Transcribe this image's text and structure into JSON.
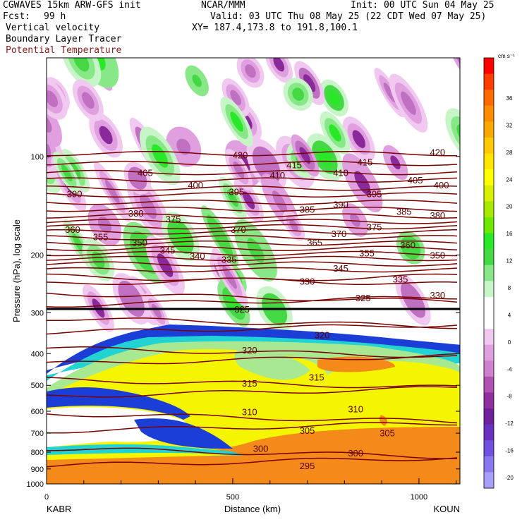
{
  "header": {
    "model": "CGWAVES 15km ARW-GFS init",
    "org": "NCAR/MMM",
    "init": "Init: 00 UTC Sun 04 May 25",
    "fcst_label": "Fcst:",
    "fcst_value": "99 h",
    "valid": "Valid: 03 UTC Thu 08 May 25 (22 CDT Wed 07 May 25)",
    "field1": "Vertical velocity",
    "field2": "Boundary Layer Tracer",
    "field3": "Potential Temperature",
    "xy": "XY= 187.4,173.8 to 191.8,100.1"
  },
  "colors": {
    "theta_contour": "#7a0000",
    "tracer_blue": "#1b3fd6",
    "tracer_cyan": "#22d3d3",
    "tracer_lightgreen": "#a8e890",
    "tracer_yellow": "#f5f500",
    "tracer_orange": "#f38a1a"
  },
  "chart_data": {
    "type": "heatmap",
    "ylabel": "Pressure (hPa), log scale",
    "xlabel": "Distance (km)",
    "y_scale": "log",
    "ylim": [
      1000,
      50
    ],
    "xlim": [
      0,
      1110
    ],
    "y_ticks": [
      100,
      200,
      300,
      400,
      500,
      600,
      700,
      800,
      900,
      1000
    ],
    "x_ticks": [
      0,
      500,
      1000
    ],
    "x_end_labels": [
      "KABR",
      "KOUN"
    ],
    "colorbar": {
      "unit": "cm s⁻¹",
      "labels": [
        36,
        32,
        28,
        24,
        20,
        16,
        12,
        8,
        4,
        0,
        -4,
        -8,
        -12,
        -16,
        -20
      ],
      "colors": [
        "#ff0000",
        "#ff3c00",
        "#ff6a00",
        "#ff8c00",
        "#f8a800",
        "#ffc800",
        "#ffe400",
        "#ffff00",
        "#d8f000",
        "#a8e800",
        "#6ee800",
        "#28e828",
        "#44d844",
        "#88e888",
        "#c8f5c8",
        "#ffffff",
        "#ffffff",
        "#f0c8f0",
        "#e0a0e0",
        "#d080d0",
        "#b050b0",
        "#9030a0",
        "#70209a",
        "#6a30c0",
        "#7050e0",
        "#8878f0",
        "#a8a0f8"
      ]
    },
    "theta_labels": [
      {
        "x": 520,
        "p": 99,
        "v": "420"
      },
      {
        "x": 1050,
        "p": 97,
        "v": "420"
      },
      {
        "x": 265,
        "p": 112,
        "v": "405"
      },
      {
        "x": 665,
        "p": 106,
        "v": "415"
      },
      {
        "x": 855,
        "p": 104,
        "v": "415"
      },
      {
        "x": 990,
        "p": 118,
        "v": "405"
      },
      {
        "x": 400,
        "p": 122,
        "v": "400"
      },
      {
        "x": 510,
        "p": 128,
        "v": "395"
      },
      {
        "x": 620,
        "p": 114,
        "v": "410"
      },
      {
        "x": 790,
        "p": 112,
        "v": "410"
      },
      {
        "x": 1060,
        "p": 122,
        "v": "400"
      },
      {
        "x": 75,
        "p": 130,
        "v": "390"
      },
      {
        "x": 790,
        "p": 140,
        "v": "390"
      },
      {
        "x": 880,
        "p": 130,
        "v": "395"
      },
      {
        "x": 240,
        "p": 149,
        "v": "380"
      },
      {
        "x": 700,
        "p": 145,
        "v": "385"
      },
      {
        "x": 960,
        "p": 147,
        "v": "385"
      },
      {
        "x": 1050,
        "p": 151,
        "v": "380"
      },
      {
        "x": 340,
        "p": 155,
        "v": "375"
      },
      {
        "x": 515,
        "p": 167,
        "v": "370"
      },
      {
        "x": 785,
        "p": 172,
        "v": "370"
      },
      {
        "x": 880,
        "p": 164,
        "v": "375"
      },
      {
        "x": 70,
        "p": 167,
        "v": "360"
      },
      {
        "x": 145,
        "p": 176,
        "v": "355"
      },
      {
        "x": 250,
        "p": 183,
        "v": "350"
      },
      {
        "x": 325,
        "p": 193,
        "v": "345"
      },
      {
        "x": 720,
        "p": 183,
        "v": "365"
      },
      {
        "x": 970,
        "p": 186,
        "v": "360"
      },
      {
        "x": 405,
        "p": 201,
        "v": "340"
      },
      {
        "x": 490,
        "p": 206,
        "v": "335"
      },
      {
        "x": 860,
        "p": 197,
        "v": "355"
      },
      {
        "x": 1050,
        "p": 200,
        "v": "350"
      },
      {
        "x": 790,
        "p": 219,
        "v": "345"
      },
      {
        "x": 700,
        "p": 240,
        "v": "330"
      },
      {
        "x": 950,
        "p": 237,
        "v": "335"
      },
      {
        "x": 1050,
        "p": 265,
        "v": "330"
      },
      {
        "x": 525,
        "p": 292,
        "v": "325"
      },
      {
        "x": 850,
        "p": 270,
        "v": "325"
      },
      {
        "x": 545,
        "p": 390,
        "v": "320"
      },
      {
        "x": 740,
        "p": 350,
        "v": "320"
      },
      {
        "x": 545,
        "p": 492,
        "v": "315"
      },
      {
        "x": 725,
        "p": 472,
        "v": "315"
      },
      {
        "x": 545,
        "p": 601,
        "v": "310"
      },
      {
        "x": 830,
        "p": 590,
        "v": "310"
      },
      {
        "x": 700,
        "p": 686,
        "v": "305"
      },
      {
        "x": 915,
        "p": 698,
        "v": "305"
      },
      {
        "x": 575,
        "p": 778,
        "v": "300"
      },
      {
        "x": 830,
        "p": 803,
        "v": "300"
      },
      {
        "x": 700,
        "p": 880,
        "v": "295"
      }
    ]
  }
}
